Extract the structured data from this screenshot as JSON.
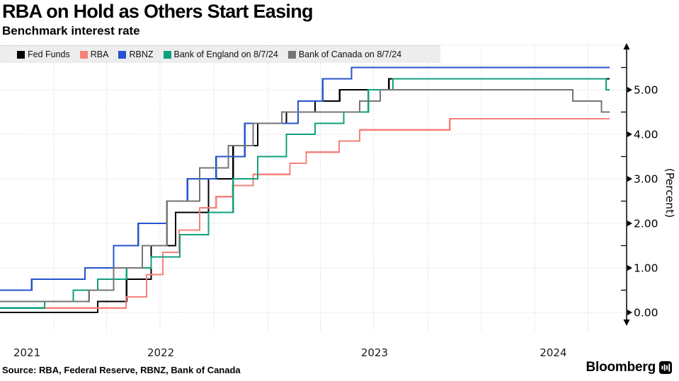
{
  "header": {
    "title": "RBA on Hold as Others Start Easing",
    "subtitle": "Benchmark interest rate"
  },
  "source": "Source: RBA, Federal Reserve, RBNZ, Bank of Canada",
  "branding": {
    "wordmark": "Bloomberg"
  },
  "chart_data": {
    "type": "line",
    "step": true,
    "title": "RBA on Hold as Others Start Easing",
    "subtitle": "Benchmark interest rate",
    "ylabel": "(Percent)",
    "grid": true,
    "legend_position": "top",
    "x_domain": [
      "2021-10-01",
      "2024-09-05"
    ],
    "data_end": "2024-08-07",
    "ylim": [
      -0.25,
      6.0
    ],
    "y_axis": {
      "unit_label": "(Percent)",
      "major_ticks": [
        {
          "value": 0,
          "label": "0.00"
        },
        {
          "value": 1,
          "label": "1.00"
        },
        {
          "value": 2,
          "label": "2.00"
        },
        {
          "value": 3,
          "label": "3.00"
        },
        {
          "value": 4,
          "label": "4.00"
        },
        {
          "value": 5,
          "label": "5.00"
        }
      ],
      "minor_ticks": [
        0.5,
        1.5,
        2.5,
        3.5,
        4.5,
        5.5
      ],
      "gridline_values": [
        0,
        1,
        2,
        3,
        4,
        5,
        6
      ]
    },
    "x_axis": {
      "year_labels": [
        "2021",
        "2022",
        "2023",
        "2024"
      ],
      "quarter_gridline_dates": [
        "2022-01-01",
        "2022-04-01",
        "2022-07-01",
        "2022-10-01",
        "2023-01-01",
        "2023-04-01",
        "2023-07-01",
        "2023-10-01",
        "2024-01-01",
        "2024-04-01",
        "2024-07-01"
      ]
    },
    "series": [
      {
        "name": "Fed Funds",
        "color": "#000000",
        "points": [
          [
            "2021-10-01",
            0.0
          ],
          [
            "2022-03-17",
            0.25
          ],
          [
            "2022-05-05",
            0.75
          ],
          [
            "2022-06-16",
            1.5
          ],
          [
            "2022-07-28",
            2.25
          ],
          [
            "2022-09-22",
            3.0
          ],
          [
            "2022-11-03",
            3.75
          ],
          [
            "2022-12-15",
            4.25
          ],
          [
            "2023-02-02",
            4.5
          ],
          [
            "2023-03-23",
            4.75
          ],
          [
            "2023-05-04",
            5.0
          ],
          [
            "2023-07-27",
            5.25
          ]
        ]
      },
      {
        "name": "RBA",
        "color": "#f6817b",
        "points": [
          [
            "2021-10-01",
            0.1
          ],
          [
            "2022-05-04",
            0.35
          ],
          [
            "2022-06-08",
            0.85
          ],
          [
            "2022-07-06",
            1.35
          ],
          [
            "2022-08-03",
            1.85
          ],
          [
            "2022-09-07",
            2.35
          ],
          [
            "2022-10-05",
            2.6
          ],
          [
            "2022-11-02",
            2.85
          ],
          [
            "2022-12-07",
            3.1
          ],
          [
            "2023-02-08",
            3.35
          ],
          [
            "2023-03-08",
            3.6
          ],
          [
            "2023-05-03",
            3.85
          ],
          [
            "2023-06-07",
            4.1
          ],
          [
            "2023-11-08",
            4.35
          ]
        ]
      },
      {
        "name": "RBNZ",
        "color": "#2454cc",
        "points": [
          [
            "2021-10-01",
            0.5
          ],
          [
            "2021-11-24",
            0.75
          ],
          [
            "2022-02-23",
            1.0
          ],
          [
            "2022-04-13",
            1.5
          ],
          [
            "2022-05-25",
            2.0
          ],
          [
            "2022-07-13",
            2.5
          ],
          [
            "2022-08-17",
            3.0
          ],
          [
            "2022-10-05",
            3.5
          ],
          [
            "2022-11-23",
            4.25
          ],
          [
            "2023-02-22",
            4.75
          ],
          [
            "2023-04-05",
            5.25
          ],
          [
            "2023-05-24",
            5.5
          ]
        ]
      },
      {
        "name": "Bank of England on 8/7/24",
        "color": "#0fa07d",
        "points": [
          [
            "2021-10-01",
            0.1
          ],
          [
            "2021-12-16",
            0.25
          ],
          [
            "2022-02-03",
            0.5
          ],
          [
            "2022-03-17",
            0.75
          ],
          [
            "2022-05-05",
            1.0
          ],
          [
            "2022-06-16",
            1.25
          ],
          [
            "2022-08-04",
            1.75
          ],
          [
            "2022-09-22",
            2.25
          ],
          [
            "2022-11-03",
            3.0
          ],
          [
            "2022-12-15",
            3.5
          ],
          [
            "2023-02-02",
            4.0
          ],
          [
            "2023-03-23",
            4.25
          ],
          [
            "2023-05-11",
            4.5
          ],
          [
            "2023-06-22",
            5.0
          ],
          [
            "2023-08-03",
            5.25
          ],
          [
            "2024-08-01",
            5.0
          ]
        ]
      },
      {
        "name": "Bank of Canada on 8/7/24",
        "color": "#757575",
        "points": [
          [
            "2021-10-01",
            0.25
          ],
          [
            "2022-03-02",
            0.5
          ],
          [
            "2022-04-13",
            1.0
          ],
          [
            "2022-06-01",
            1.5
          ],
          [
            "2022-07-13",
            2.5
          ],
          [
            "2022-09-07",
            3.25
          ],
          [
            "2022-10-26",
            3.75
          ],
          [
            "2022-12-07",
            4.25
          ],
          [
            "2023-01-25",
            4.5
          ],
          [
            "2023-06-07",
            4.75
          ],
          [
            "2023-07-12",
            5.0
          ],
          [
            "2024-06-05",
            4.75
          ],
          [
            "2024-07-24",
            4.5
          ]
        ]
      }
    ]
  }
}
